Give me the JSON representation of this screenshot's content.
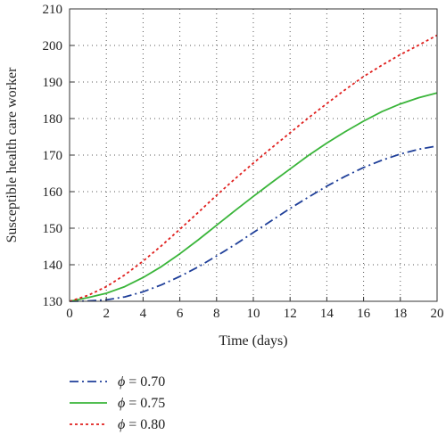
{
  "chart_data": {
    "type": "line",
    "title": "",
    "xlabel": "Time (days)",
    "ylabel": "Susceptible health care worker",
    "xlim": [
      0,
      20
    ],
    "ylim": [
      130,
      210
    ],
    "x_ticks": [
      0,
      2,
      4,
      6,
      8,
      10,
      12,
      14,
      16,
      18,
      20
    ],
    "y_ticks": [
      130,
      140,
      150,
      160,
      170,
      180,
      190,
      200,
      210
    ],
    "grid": true,
    "grid_style": "dotted",
    "legend_position": "below",
    "x": [
      0,
      1,
      2,
      3,
      4,
      5,
      6,
      7,
      8,
      9,
      10,
      11,
      12,
      13,
      14,
      15,
      16,
      17,
      18,
      19,
      20
    ],
    "series": [
      {
        "name": "ϕ = 0.70",
        "symbol": "ϕ",
        "value_label": " = 0.70",
        "color": "#1f3f99",
        "dash": "dashdot",
        "values": [
          130,
          130.1,
          130.4,
          131.2,
          132.6,
          134.5,
          136.8,
          139.4,
          142.4,
          145.5,
          148.8,
          152.1,
          155.4,
          158.5,
          161.5,
          164.2,
          166.6,
          168.6,
          170.3,
          171.6,
          172.5
        ]
      },
      {
        "name": "ϕ = 0.75",
        "symbol": "ϕ",
        "value_label": " = 0.75",
        "color": "#3ab53a",
        "dash": "solid",
        "values": [
          130,
          131,
          132.2,
          134,
          136.5,
          139.5,
          143,
          146.8,
          150.8,
          154.8,
          158.7,
          162.5,
          166.2,
          169.9,
          173.3,
          176.4,
          179.3,
          181.9,
          184,
          185.7,
          187
        ]
      },
      {
        "name": "ϕ = 0.80",
        "symbol": "ϕ",
        "value_label": " = 0.80",
        "color": "#e0201e",
        "dash": "dotted",
        "values": [
          130,
          131.6,
          134,
          137.2,
          141,
          145.2,
          149.7,
          154.3,
          159,
          163.5,
          167.8,
          172,
          176.1,
          180.2,
          184.1,
          187.9,
          191.5,
          194.6,
          197.5,
          200.1,
          202.8
        ]
      }
    ]
  }
}
